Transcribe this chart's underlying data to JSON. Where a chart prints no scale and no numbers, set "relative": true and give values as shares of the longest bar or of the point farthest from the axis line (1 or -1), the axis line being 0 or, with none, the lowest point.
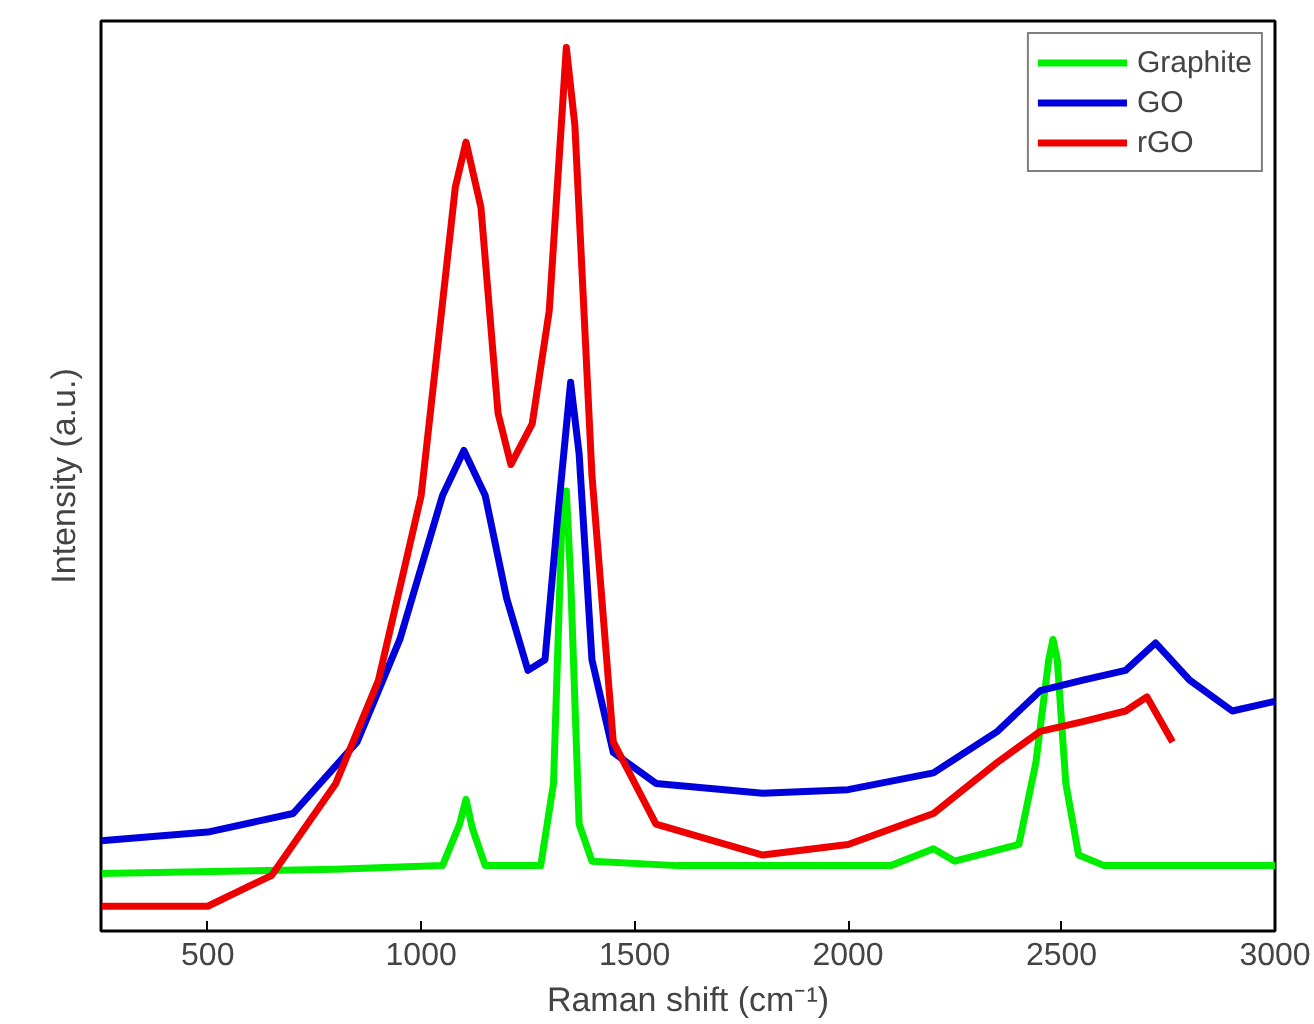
{
  "chart_data": {
    "type": "line",
    "xlabel": "Raman shift (cm⁻¹)",
    "ylabel": "Intensity (a.u.)",
    "relative": true,
    "xlim": [
      250,
      3000
    ],
    "xticks": [
      500,
      1000,
      1500,
      2000,
      2500,
      3000
    ],
    "tick_labels": "x",
    "legend": "top right",
    "grid": false,
    "marker": "none",
    "line_style": "solid",
    "series": [
      {
        "name": "Graphite",
        "color": "#00ee00",
        "x": [
          250,
          800,
          1050,
          1090,
          1105,
          1120,
          1150,
          1280,
          1310,
          1330,
          1340,
          1350,
          1370,
          1400,
          1600,
          2100,
          2200,
          2250,
          2400,
          2440,
          2470,
          2480,
          2490,
          2510,
          2540,
          2600,
          3000
        ],
        "values": [
          0.065,
          0.07,
          0.074,
          0.121,
          0.149,
          0.116,
          0.074,
          0.074,
          0.167,
          0.47,
          0.498,
          0.4,
          0.121,
          0.079,
          0.074,
          0.074,
          0.093,
          0.079,
          0.098,
          0.191,
          0.307,
          0.33,
          0.307,
          0.167,
          0.086,
          0.074,
          0.074
        ]
      },
      {
        "name": "GO",
        "color": "#0000dd",
        "x": [
          250,
          500,
          700,
          850,
          950,
          1050,
          1100,
          1150,
          1200,
          1250,
          1290,
          1320,
          1350,
          1370,
          1400,
          1450,
          1550,
          1800,
          2000,
          2200,
          2350,
          2450,
          2550,
          2650,
          2720,
          2800,
          2900,
          3000
        ],
        "values": [
          0.102,
          0.112,
          0.133,
          0.214,
          0.33,
          0.493,
          0.544,
          0.493,
          0.377,
          0.295,
          0.307,
          0.47,
          0.621,
          0.54,
          0.307,
          0.202,
          0.167,
          0.156,
          0.16,
          0.179,
          0.226,
          0.272,
          0.284,
          0.295,
          0.326,
          0.284,
          0.249,
          0.26
        ]
      },
      {
        "name": "rGO",
        "color": "#ee0000",
        "x": [
          250,
          500,
          650,
          800,
          900,
          1000,
          1080,
          1105,
          1140,
          1180,
          1210,
          1260,
          1300,
          1340,
          1360,
          1400,
          1450,
          1550,
          1800,
          2000,
          2200,
          2350,
          2450,
          2550,
          2650,
          2700,
          2760
        ],
        "values": [
          0.028,
          0.028,
          0.063,
          0.167,
          0.284,
          0.493,
          0.842,
          0.893,
          0.819,
          0.586,
          0.528,
          0.574,
          0.702,
          1.0,
          0.912,
          0.516,
          0.214,
          0.121,
          0.086,
          0.098,
          0.133,
          0.191,
          0.226,
          0.237,
          0.249,
          0.265,
          0.214
        ]
      }
    ]
  }
}
